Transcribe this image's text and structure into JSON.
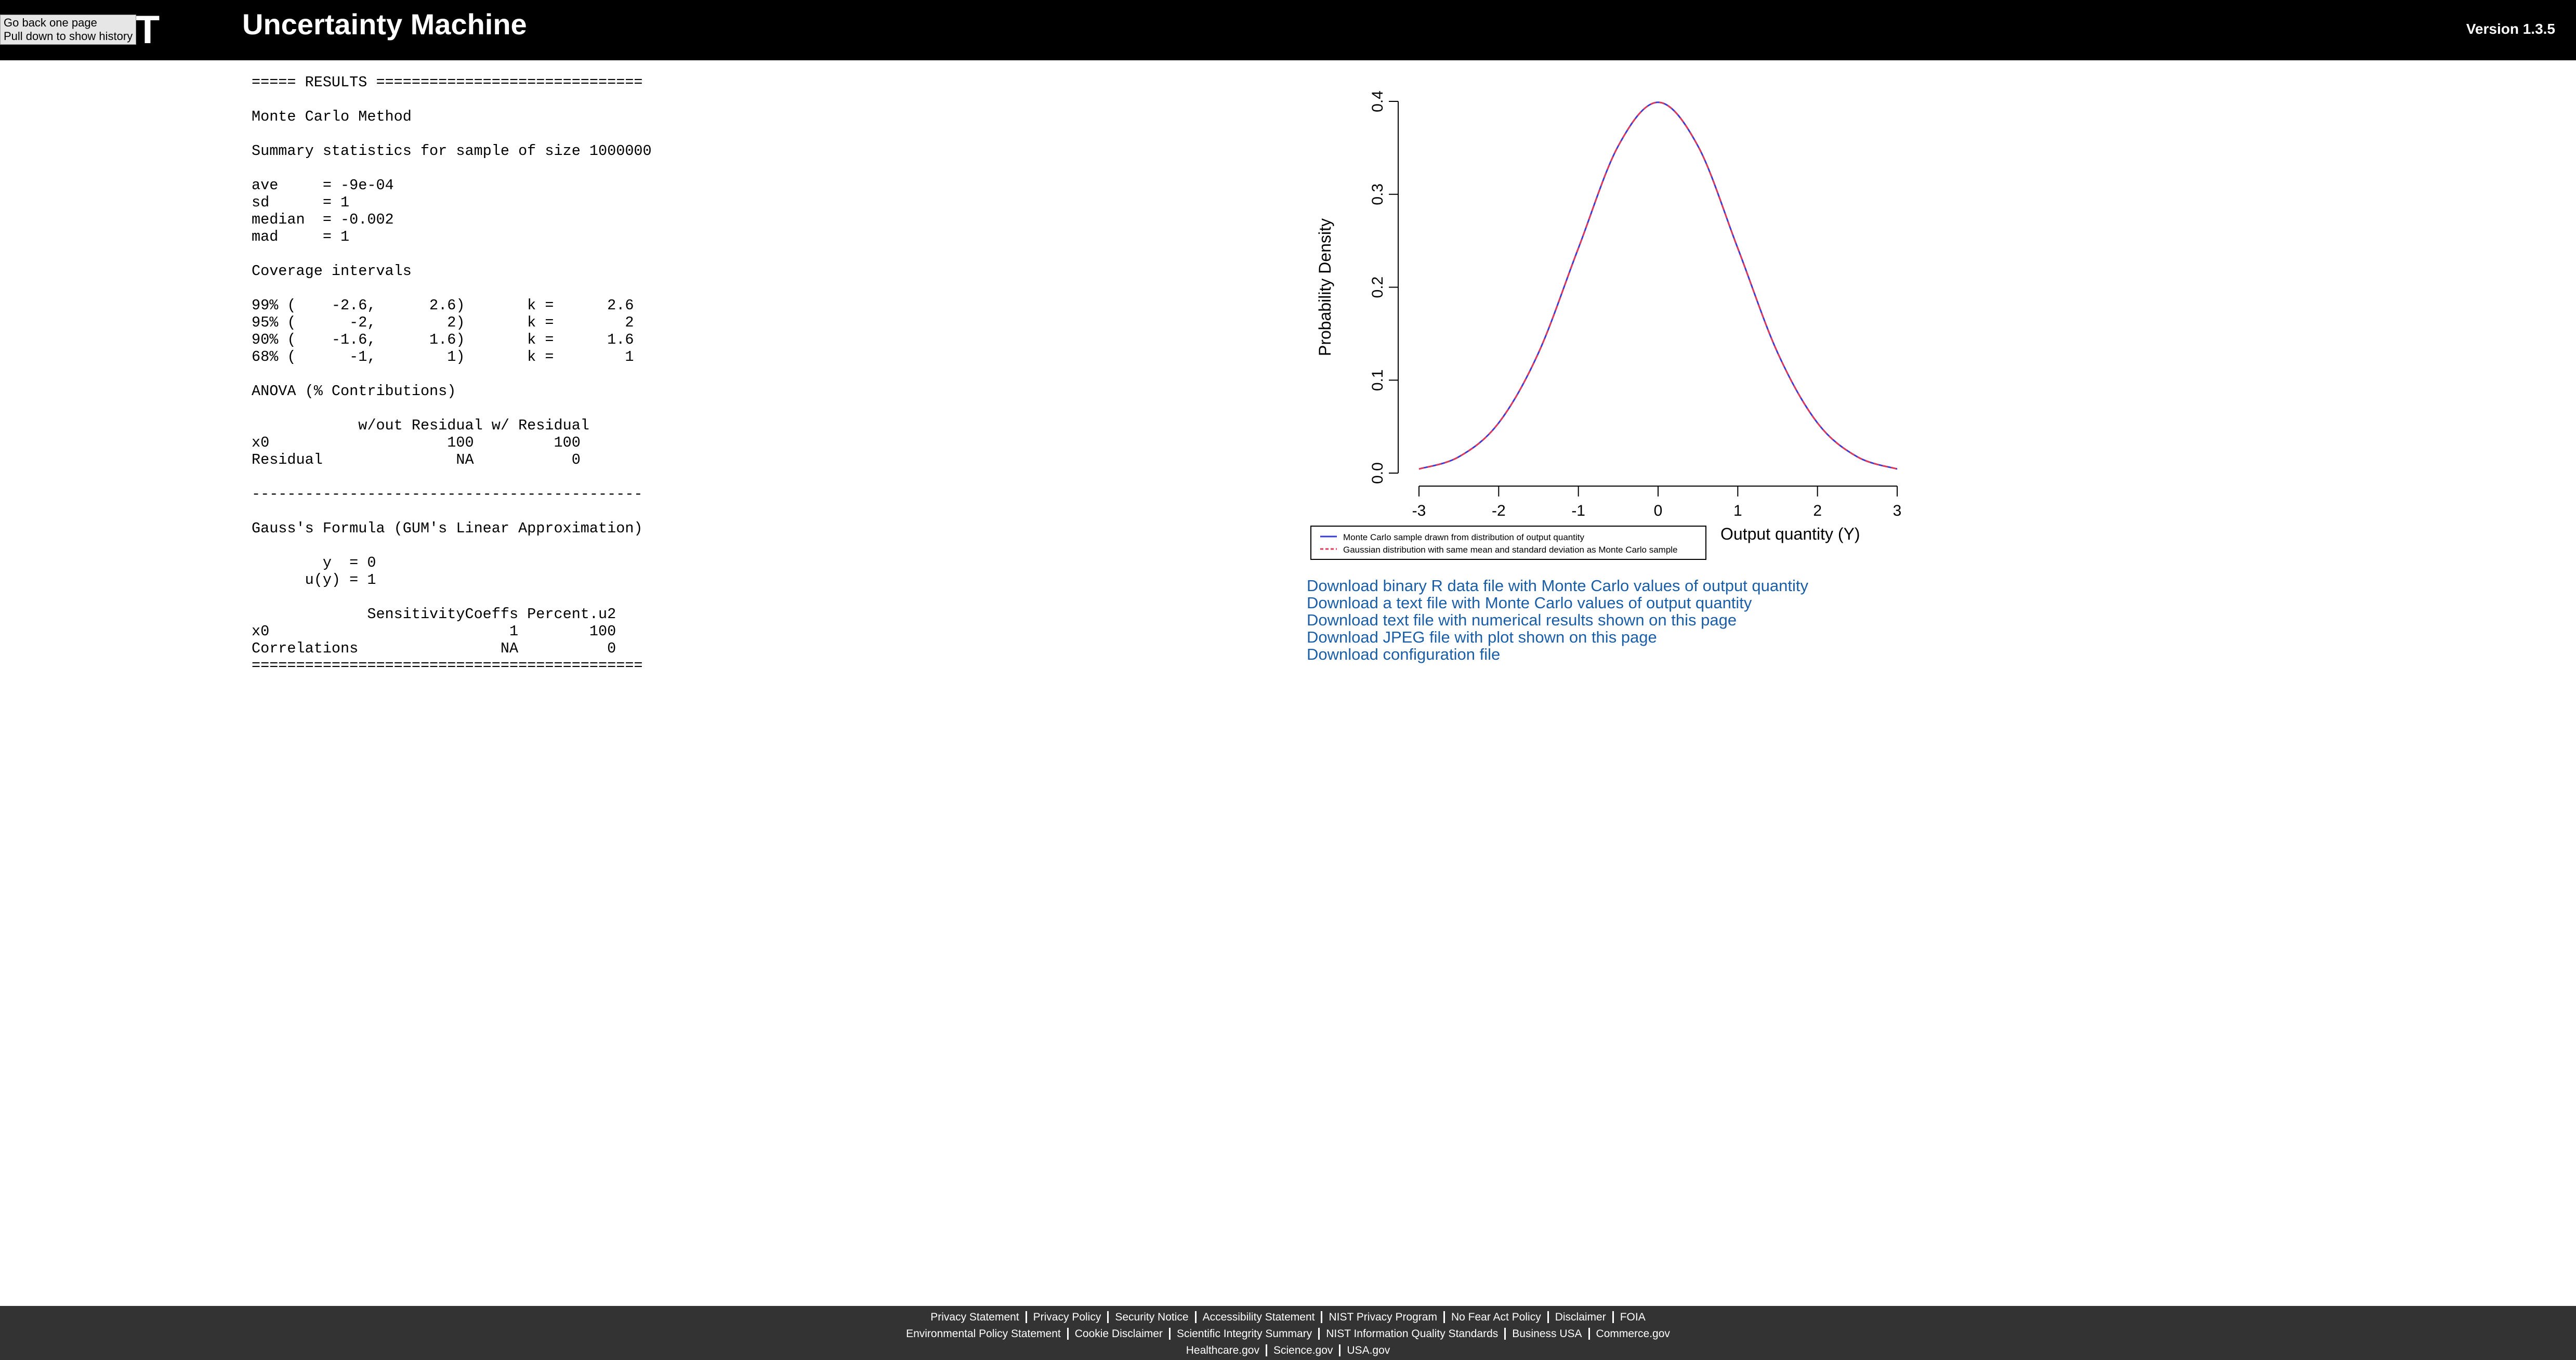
{
  "header": {
    "logo_text": "NIST",
    "title": "Uncertainty Machine",
    "version": "Version 1.3.5"
  },
  "tooltip": {
    "line1": "Go back one page",
    "line2": "Pull down to show history"
  },
  "results": {
    "lines": [
      "===== RESULTS ==============================",
      "",
      "Monte Carlo Method",
      "",
      "Summary statistics for sample of size 1000000",
      "",
      "ave     = -9e-04",
      "sd      = 1",
      "median  = -0.002",
      "mad     = 1",
      "",
      "Coverage intervals",
      "",
      "99% (    -2.6,      2.6)       k =      2.6",
      "95% (      -2,        2)       k =        2",
      "90% (    -1.6,      1.6)       k =      1.6",
      "68% (      -1,        1)       k =        1",
      "",
      "ANOVA (% Contributions)",
      "",
      "            w/out Residual w/ Residual",
      "x0                    100         100",
      "Residual               NA           0",
      "",
      "--------------------------------------------",
      "",
      "Gauss's Formula (GUM's Linear Approximation)",
      "",
      "        y  = 0",
      "      u(y) = 1",
      "",
      "             SensitivityCoeffs Percent.u2",
      "x0                           1        100",
      "Correlations                NA          0",
      "============================================"
    ]
  },
  "chart_data": {
    "type": "line",
    "title": "",
    "xlabel": "Output quantity (Y)",
    "ylabel": "Probability Density",
    "xlim": [
      -3,
      3
    ],
    "ylim": [
      0,
      0.4
    ],
    "xticks": [
      "-3",
      "-2",
      "-1",
      "0",
      "1",
      "2",
      "3"
    ],
    "yticks": [
      "0.0",
      "0.1",
      "0.2",
      "0.3",
      "0.4"
    ],
    "legend_position": "bottom-left",
    "series": [
      {
        "name": "Monte Carlo sample drawn from distribution of output quantity",
        "color": "#3b3bd6",
        "style": "solid",
        "x": [
          -3,
          -2.5,
          -2,
          -1.5,
          -1,
          -0.5,
          0,
          0.5,
          1,
          1.5,
          2,
          2.5,
          3
        ],
        "y": [
          0.0044,
          0.0175,
          0.054,
          0.1295,
          0.242,
          0.352,
          0.399,
          0.352,
          0.242,
          0.1295,
          0.054,
          0.0175,
          0.0044
        ]
      },
      {
        "name": "Gaussian distribution with same mean and standard deviation as Monte Carlo sample",
        "color": "#e03a5a",
        "style": "dashed",
        "x": [
          -3,
          -2.5,
          -2,
          -1.5,
          -1,
          -0.5,
          0,
          0.5,
          1,
          1.5,
          2,
          2.5,
          3
        ],
        "y": [
          0.0044,
          0.0175,
          0.054,
          0.1295,
          0.242,
          0.352,
          0.399,
          0.352,
          0.242,
          0.1295,
          0.054,
          0.0175,
          0.0044
        ]
      }
    ]
  },
  "downloads": [
    "Download binary R data file with Monte Carlo values of output quantity",
    "Download a text file with Monte Carlo values of output quantity",
    "Download text file with numerical results shown on this page",
    "Download JPEG file with plot shown on this page",
    "Download configuration file"
  ],
  "footer": {
    "row1": [
      "Privacy Statement",
      "Privacy Policy",
      "Security Notice",
      "Accessibility Statement",
      "NIST Privacy Program",
      "No Fear Act Policy",
      "Disclaimer",
      "FOIA"
    ],
    "row2": [
      "Environmental Policy Statement",
      "Cookie Disclaimer",
      "Scientific Integrity Summary",
      "NIST Information Quality Standards",
      "Business USA",
      "Commerce.gov"
    ],
    "row3": [
      "Healthcare.gov",
      "Science.gov",
      "USA.gov"
    ]
  }
}
